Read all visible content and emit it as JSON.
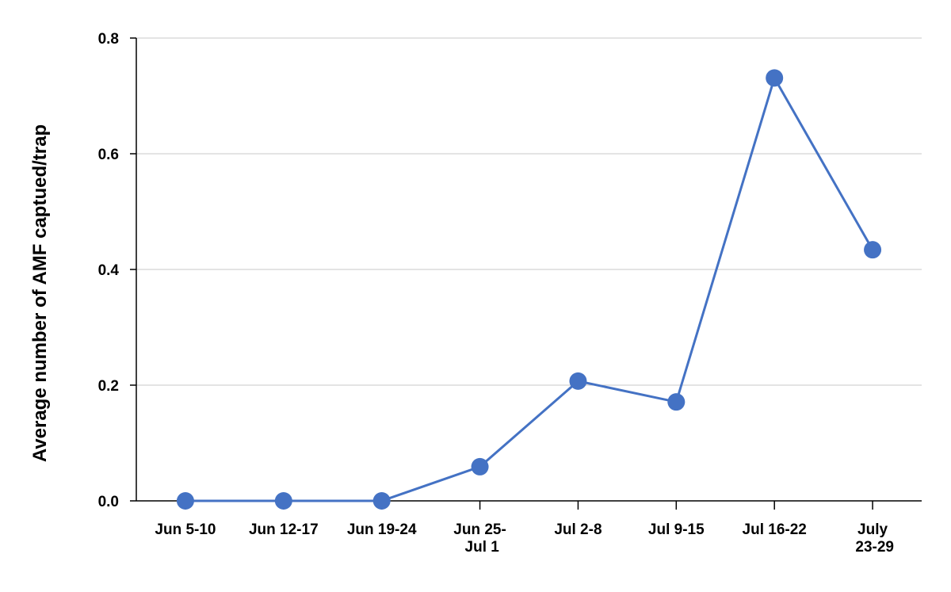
{
  "chart_data": {
    "type": "line",
    "y_label": "Average number of AMF captued/trap",
    "categories": [
      "Jun 5-10",
      "Jun 12-17",
      "Jun 19-24",
      "Jun 25-\nJul 1",
      "Jul 2-8",
      "Jul 9-15",
      "Jul 16-22",
      "July\n23-29"
    ],
    "series": [
      {
        "name": "AMF",
        "color": "#4472c4",
        "values": [
          0,
          0,
          0,
          0.059,
          0.207,
          0.171,
          0.731,
          0.434
        ]
      }
    ],
    "ylim": [
      0,
      0.8
    ],
    "yticks": [
      {
        "value": 0,
        "label": "0.0"
      },
      0.2,
      0.4,
      0.6,
      0.8
    ],
    "grid": true
  }
}
